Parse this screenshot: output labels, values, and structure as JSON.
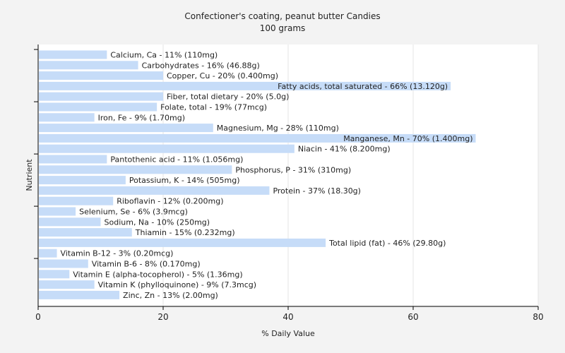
{
  "chart_data": {
    "type": "bar",
    "orientation": "horizontal",
    "title": "Confectioner's coating, peanut butter Candies",
    "subtitle": "100 grams",
    "xlabel": "% Daily Value",
    "ylabel": "Nutrient",
    "xlim": [
      0,
      80
    ],
    "xticks": [
      "0",
      "20",
      "40",
      "60",
      "80"
    ],
    "grid": true,
    "bar_color": "#c6dcf8",
    "categories": [
      "Calcium, Ca",
      "Carbohydrates",
      "Copper, Cu",
      "Fatty acids, total saturated",
      "Fiber, total dietary",
      "Folate, total",
      "Iron, Fe",
      "Magnesium, Mg",
      "Manganese, Mn",
      "Niacin",
      "Pantothenic acid",
      "Phosphorus, P",
      "Potassium, K",
      "Protein",
      "Riboflavin",
      "Selenium, Se",
      "Sodium, Na",
      "Thiamin",
      "Total lipid (fat)",
      "Vitamin B-12",
      "Vitamin B-6",
      "Vitamin E (alpha-tocopherol)",
      "Vitamin K (phylloquinone)",
      "Zinc, Zn"
    ],
    "values": [
      11,
      16,
      20,
      66,
      20,
      19,
      9,
      28,
      70,
      41,
      11,
      31,
      14,
      37,
      12,
      6,
      10,
      15,
      46,
      3,
      8,
      5,
      9,
      13
    ],
    "labels": [
      "Calcium, Ca - 11% (110mg)",
      "Carbohydrates - 16% (46.88g)",
      "Copper, Cu - 20% (0.400mg)",
      "Fatty acids, total saturated - 66% (13.120g)",
      "Fiber, total dietary - 20% (5.0g)",
      "Folate, total - 19% (77mcg)",
      "Iron, Fe - 9% (1.70mg)",
      "Magnesium, Mg - 28% (110mg)",
      "Manganese, Mn - 70% (1.400mg)",
      "Niacin - 41% (8.200mg)",
      "Pantothenic acid - 11% (1.056mg)",
      "Phosphorus, P - 31% (310mg)",
      "Potassium, K - 14% (505mg)",
      "Protein - 37% (18.30g)",
      "Riboflavin - 12% (0.200mg)",
      "Selenium, Se - 6% (3.9mcg)",
      "Sodium, Na - 10% (250mg)",
      "Thiamin - 15% (0.232mg)",
      "Total lipid (fat) - 46% (29.80g)",
      "Vitamin B-12 - 3% (0.20mcg)",
      "Vitamin B-6 - 8% (0.170mg)",
      "Vitamin E (alpha-tocopherol) - 5% (1.36mg)",
      "Vitamin K (phylloquinone) - 9% (7.3mcg)",
      "Zinc, Zn - 13% (2.00mg)"
    ]
  }
}
